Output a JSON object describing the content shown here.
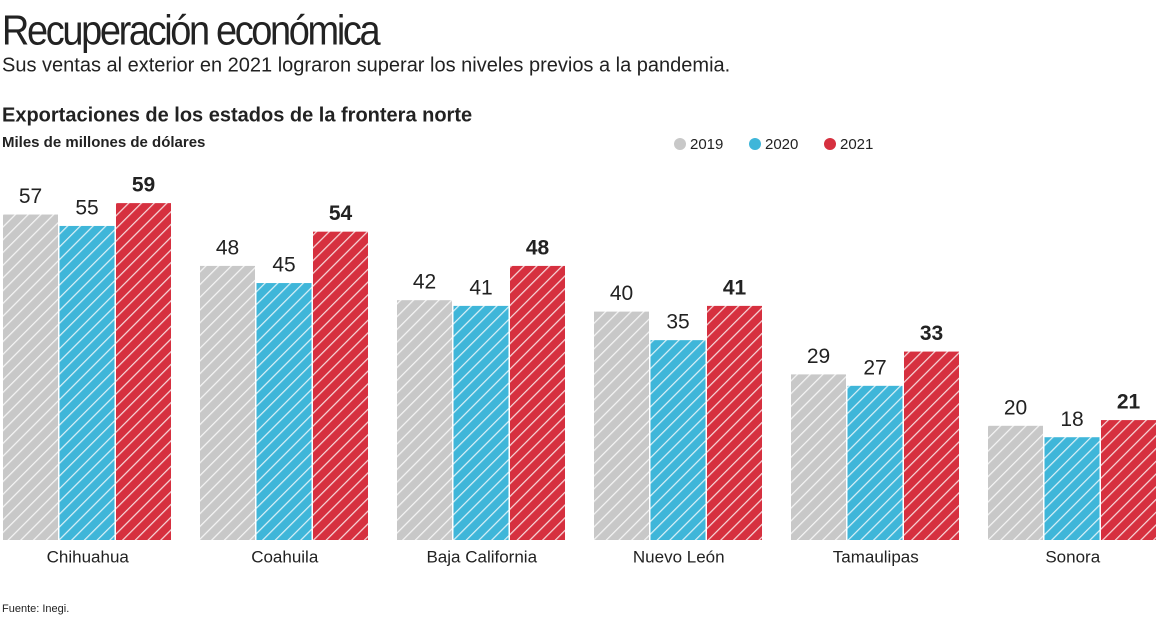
{
  "chart_data": {
    "type": "bar",
    "title": "Recuperación económica",
    "subtitle": "Sus ventas al exterior en 2021 lograron superar los niveles previos a la pandemia.",
    "chart_title": "Exportaciones de los estados de la frontera norte",
    "units": "Miles de millones de dólares",
    "source": "Fuente: Inegi.",
    "categories": [
      "Chihuahua",
      "Coahuila",
      "Baja California",
      "Nuevo León",
      "Tamaulipas",
      "Sonora"
    ],
    "series": [
      {
        "name": "2019",
        "color": "#c8c8c8",
        "values": [
          57,
          48,
          42,
          40,
          29,
          20
        ]
      },
      {
        "name": "2020",
        "color": "#3fb6d9",
        "values": [
          55,
          45,
          41,
          35,
          27,
          18
        ]
      },
      {
        "name": "2021",
        "color": "#d6303f",
        "values": [
          59,
          54,
          48,
          41,
          33,
          21
        ]
      }
    ]
  }
}
